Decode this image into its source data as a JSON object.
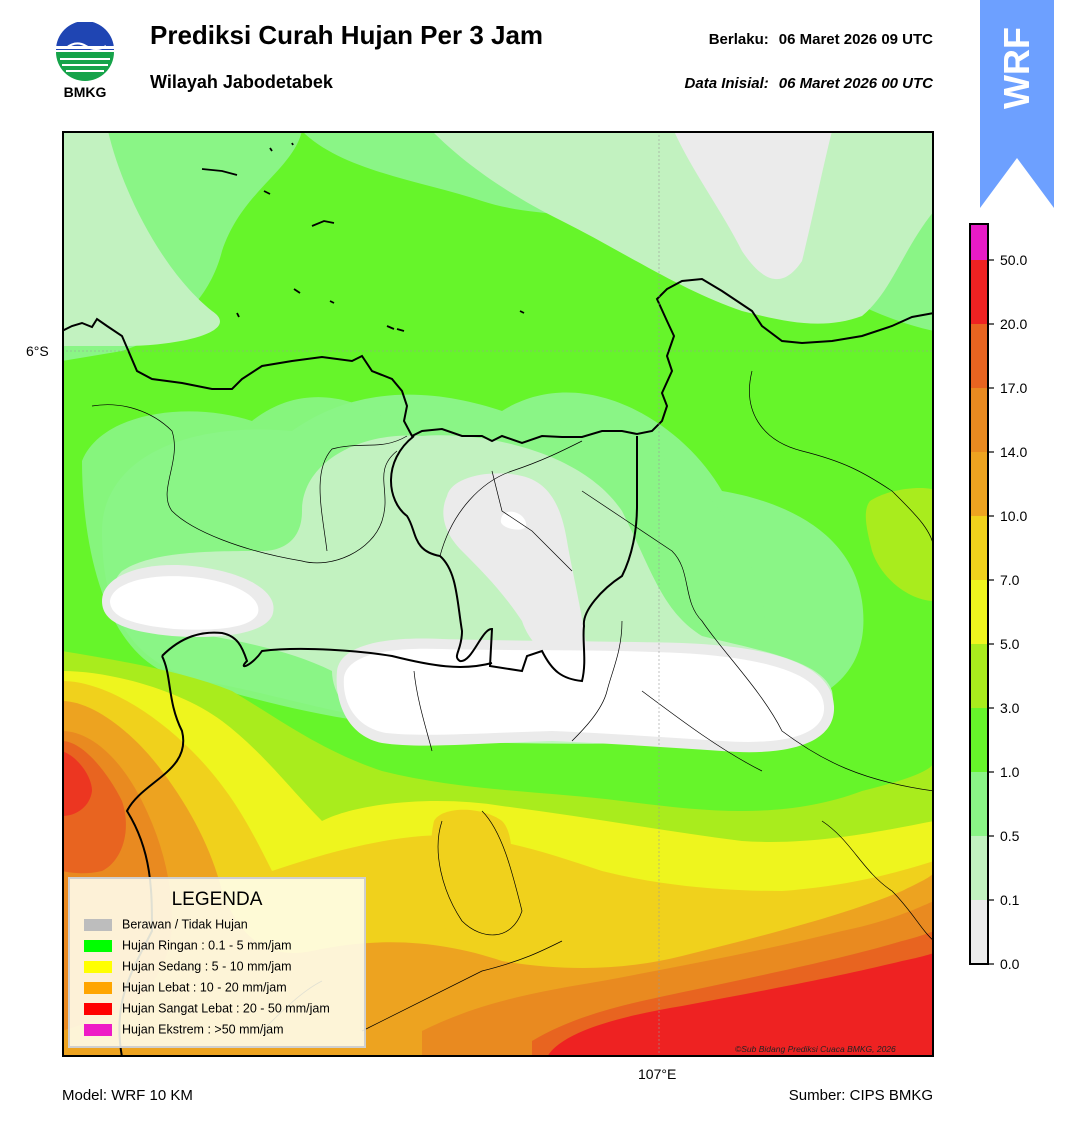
{
  "header": {
    "title": "Prediksi Curah Hujan Per 3 Jam",
    "subtitle": "Wilayah Jabodetabek",
    "valid_label": "Berlaku:",
    "valid_value": "06 Maret 2026 09 UTC",
    "init_label": "Data Inisial:",
    "init_value": "06 Maret 2026 00 UTC",
    "logo_text": "BMKG",
    "badge_text": "WRF"
  },
  "map": {
    "lat_label": "6°S",
    "lon_label": "107°E",
    "copyright": "©Sub Bidang Prediksi Cuaca BMKG, 2026"
  },
  "colorbar": {
    "ticks": [
      "0.0",
      "0.1",
      "0.5",
      "1.0",
      "3.0",
      "5.0",
      "7.0",
      "10.0",
      "14.0",
      "17.0",
      "20.0",
      "50.0"
    ],
    "colors": [
      "#ebebeb",
      "#c2f2c0",
      "#8af586",
      "#66f52a",
      "#a9ec1d",
      "#eef51e",
      "#f0d11c",
      "#eda320",
      "#e98a20",
      "#e86420",
      "#ee2222",
      "#e81bc6"
    ]
  },
  "legend": {
    "title": "LEGENDA",
    "items": [
      {
        "label": "Berawan / Tidak Hujan",
        "color": "#bdbdbd"
      },
      {
        "label": "Hujan Ringan : 0.1 - 5 mm/jam",
        "color": "#00ff00"
      },
      {
        "label": "Hujan Sedang : 5 - 10 mm/jam",
        "color": "#ffff00"
      },
      {
        "label": "Hujan Lebat : 10 - 20 mm/jam",
        "color": "#ffa500"
      },
      {
        "label": "Hujan Sangat Lebat : 20 - 50 mm/jam",
        "color": "#ff0000"
      },
      {
        "label": "Hujan Ekstrem : >50 mm/jam",
        "color": "#ee1bc6"
      }
    ]
  },
  "footer": {
    "model": "Model: WRF 10 KM",
    "source": "Sumber: CIPS BMKG"
  }
}
